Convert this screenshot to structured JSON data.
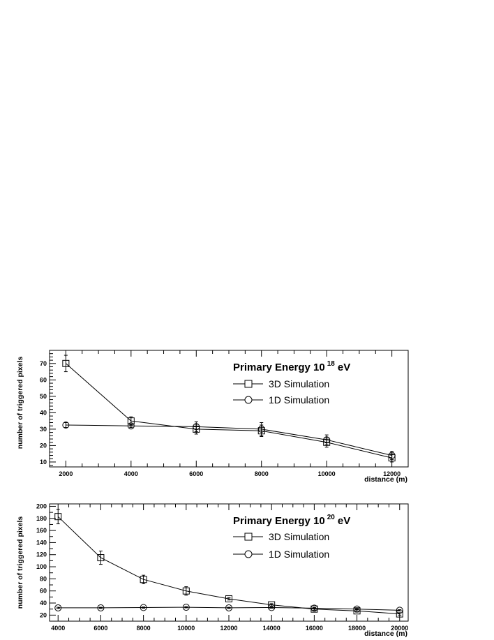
{
  "chart_data": [
    {
      "type": "line",
      "xlabel": "distance (m)",
      "ylabel": "number of triggered pixels",
      "xlim": [
        1500,
        12500
      ],
      "ylim": [
        7,
        78
      ],
      "xticks": [
        2000,
        4000,
        6000,
        8000,
        10000,
        12000
      ],
      "yticks": [
        10,
        20,
        30,
        40,
        50,
        60,
        70
      ],
      "legend": {
        "title": "Primary Energy 10",
        "title_exponent": "18",
        "title_unit": "eV",
        "position": "top-right"
      },
      "x": [
        2000,
        4000,
        6000,
        8000,
        10000,
        12000
      ],
      "series": [
        {
          "name": "3D Simulation",
          "marker": "open-square",
          "values": [
            70,
            35,
            30,
            29,
            22,
            12.5
          ],
          "errors": [
            5,
            2.5,
            3,
            3.5,
            3,
            2.5
          ]
        },
        {
          "name": "1D Simulation",
          "marker": "open-circle",
          "values": [
            32.5,
            32,
            31.5,
            30,
            23.5,
            14
          ],
          "errors": [
            1.5,
            1,
            3,
            4,
            3,
            2.5
          ]
        }
      ]
    },
    {
      "type": "line",
      "xlabel": "distance (m)",
      "ylabel": "number of triggered pixels",
      "xlim": [
        3600,
        20400
      ],
      "ylim": [
        10,
        204
      ],
      "xticks": [
        4000,
        6000,
        8000,
        10000,
        12000,
        14000,
        16000,
        18000,
        20000
      ],
      "yticks": [
        20,
        40,
        60,
        80,
        100,
        120,
        140,
        160,
        180,
        200
      ],
      "legend": {
        "title": "Primary Energy 10",
        "title_exponent": "20",
        "title_unit": "eV",
        "position": "top-right"
      },
      "x": [
        4000,
        6000,
        8000,
        10000,
        12000,
        14000,
        16000,
        18000,
        20000
      ],
      "series": [
        {
          "name": "3D Simulation",
          "marker": "open-square",
          "values": [
            183,
            115,
            79,
            60,
            47,
            37,
            30,
            27,
            22
          ],
          "errors": [
            12,
            11,
            7,
            7,
            2,
            2,
            2,
            2,
            2
          ]
        },
        {
          "name": "1D Simulation",
          "marker": "open-circle",
          "values": [
            32,
            32,
            32.5,
            33,
            32,
            32.5,
            31.5,
            30,
            28
          ],
          "errors": [
            1,
            1,
            1,
            1,
            1,
            1,
            1,
            1,
            1
          ]
        }
      ]
    }
  ]
}
